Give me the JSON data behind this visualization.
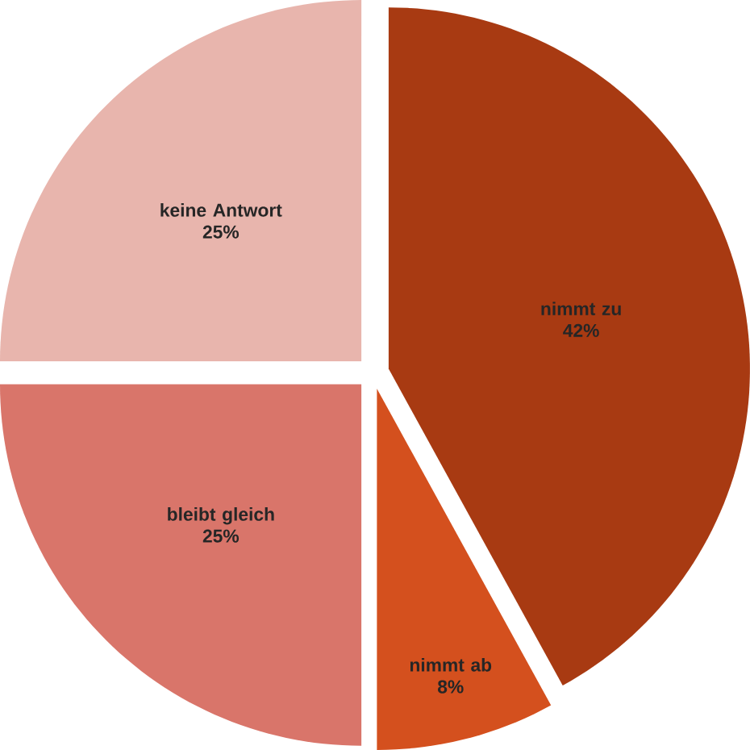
{
  "chart_data": {
    "type": "pie",
    "categories": [
      "nimmt zu",
      "nimmt ab",
      "bleibt gleich",
      "keine Antwort"
    ],
    "values": [
      42,
      8,
      25,
      25
    ],
    "value_labels": [
      "42%",
      "8%",
      "25%",
      "25%"
    ],
    "colors": [
      "#a83a12",
      "#d4501e",
      "#d9756a",
      "#e8b5ad"
    ]
  }
}
